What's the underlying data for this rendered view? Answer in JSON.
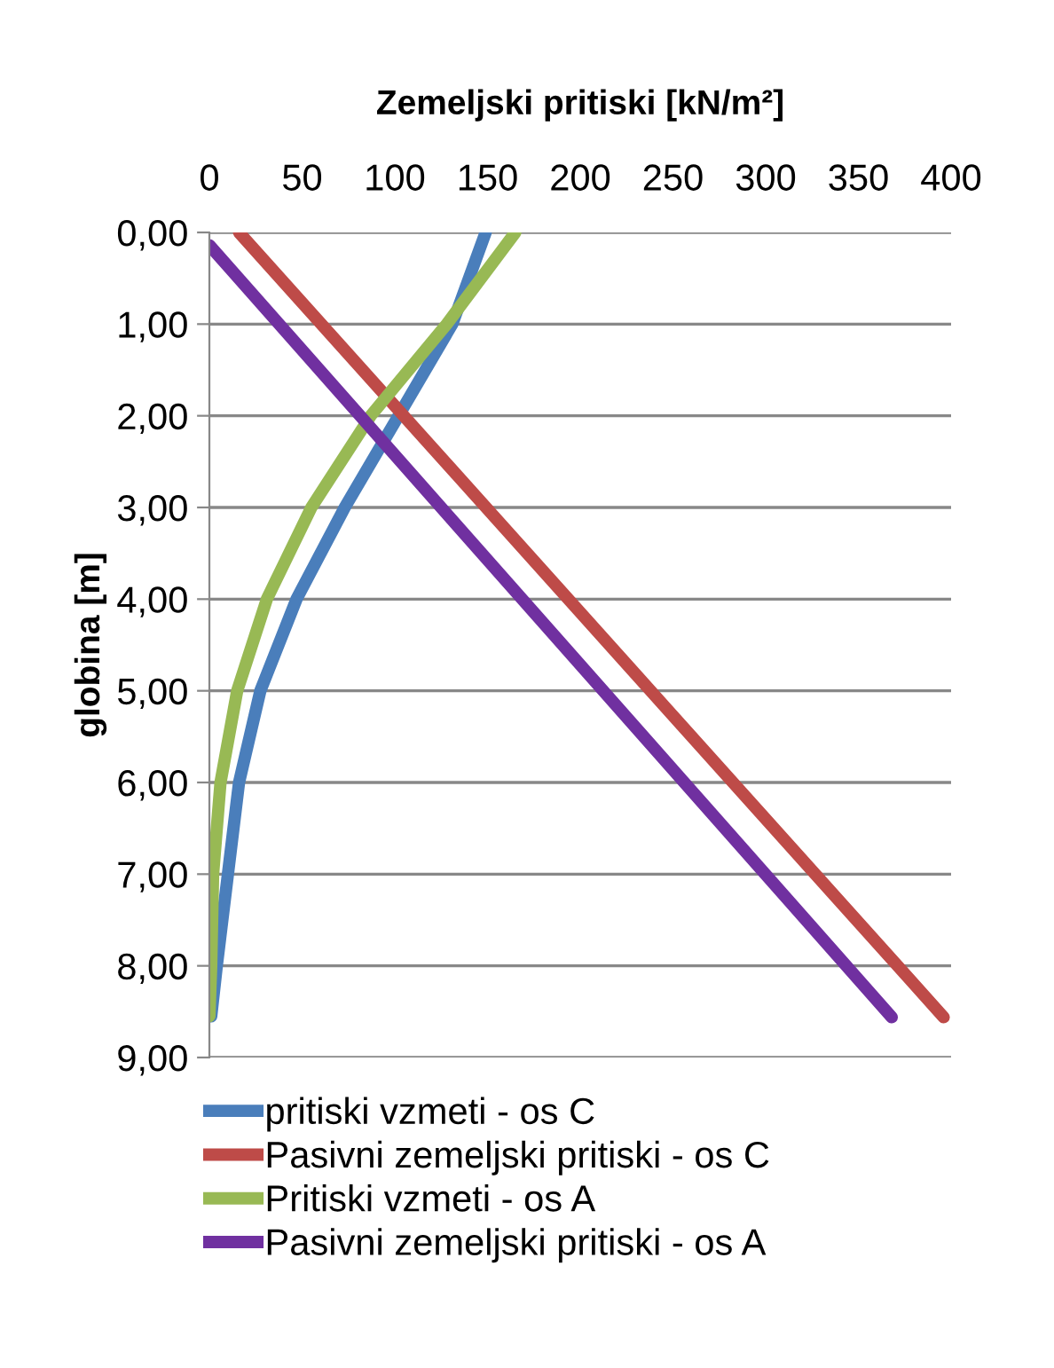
{
  "chart_data": {
    "type": "line",
    "title": "Zemeljski pritiski [kN/m²]",
    "ylabel": "globina [m]",
    "xlim": [
      0,
      400
    ],
    "xticks": [
      0,
      50,
      100,
      150,
      200,
      250,
      300,
      350,
      400
    ],
    "ylim": [
      9,
      0
    ],
    "yticks": [
      {
        "value": 0,
        "label": "0,00"
      },
      {
        "value": 1,
        "label": "1,00"
      },
      {
        "value": 2,
        "label": "2,00"
      },
      {
        "value": 3,
        "label": "3,00"
      },
      {
        "value": 4,
        "label": "4,00"
      },
      {
        "value": 5,
        "label": "5,00"
      },
      {
        "value": 6,
        "label": "6,00"
      },
      {
        "value": 7,
        "label": "7,00"
      },
      {
        "value": 8,
        "label": "8,00"
      },
      {
        "value": 9,
        "label": "9,00"
      }
    ],
    "grid": "y",
    "legend": "bottom",
    "marker": "none",
    "line_style": "solid",
    "series": [
      {
        "name": "pritiski vzmeti - os C",
        "color": "#4a7ebb",
        "x": [
          149,
          131,
          102,
          73,
          47,
          27.5,
          16,
          10,
          4,
          1
        ],
        "values": [
          0,
          1,
          2,
          3,
          4,
          5,
          6,
          7,
          8,
          8.55
        ]
      },
      {
        "name": "Pasivni zemeljski pritiski - os C",
        "color": "#be4b48",
        "x": [
          16,
          396
        ],
        "values": [
          0,
          8.56
        ]
      },
      {
        "name": "Pritiski vzmeti - os A",
        "color": "#98b954",
        "x": [
          165,
          128,
          87,
          55,
          31,
          15,
          6,
          2,
          1,
          0
        ],
        "values": [
          0,
          1,
          2,
          3,
          4,
          5,
          6,
          7,
          8,
          8.55
        ]
      },
      {
        "name": "Pasivni zemeljski pritiski - os A",
        "color": "#7030a0",
        "x": [
          0,
          368
        ],
        "values": [
          0.14,
          8.56
        ]
      }
    ]
  }
}
